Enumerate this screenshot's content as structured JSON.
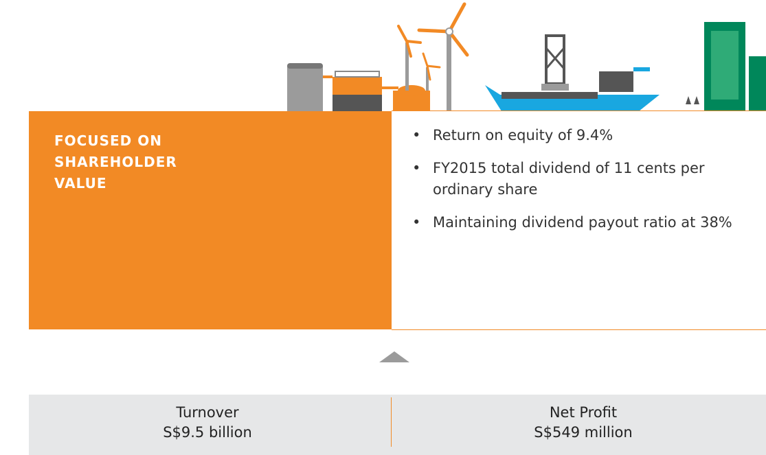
{
  "header": {
    "title": "FOCUSED ON SHAREHOLDER VALUE"
  },
  "points": [
    "Return on equity of 9.4%",
    "FY2015 total dividend of 11 cents per ordinary share",
    "Maintaining dividend payout ratio at 38%"
  ],
  "metrics": [
    {
      "label": "Turnover",
      "value": "S$9.5 billion"
    },
    {
      "label": "Net Profit",
      "value": "S$549 million"
    }
  ]
}
